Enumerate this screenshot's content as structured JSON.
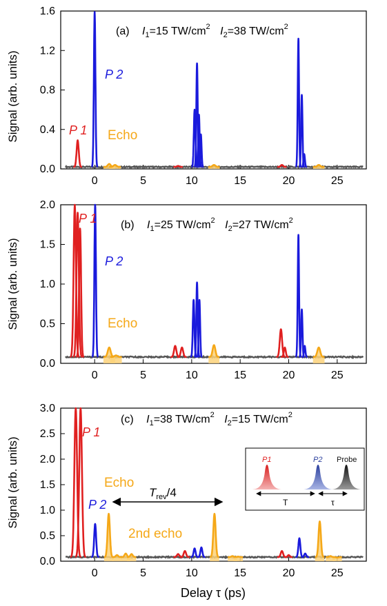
{
  "chart_data": [
    {
      "type": "line",
      "title": "(a)",
      "intensity_I1": "15 TW/cm",
      "intensity_I2": "38 TW/cm",
      "ylabel": "Signal (arb. units)",
      "xlabel": "",
      "xlim": [
        -3.5,
        28
      ],
      "ylim": [
        0,
        1.6
      ],
      "xticks": [
        "0",
        "5",
        "10",
        "15",
        "20",
        "25"
      ],
      "yticks": [
        "0.0",
        "0.4",
        "0.8",
        "1.2",
        "1.6"
      ],
      "ytick_values": [
        0,
        0.4,
        0.8,
        1.2,
        1.6
      ],
      "labels": {
        "p1": "P 1",
        "p2": "P 2",
        "echo": "Echo"
      },
      "baseline": 0.02,
      "series": [
        {
          "color": "#e02020",
          "peaks": [
            {
              "x": -1.75,
              "y": 0.29,
              "w": 0.11
            },
            {
              "x": 8.6,
              "y": 0.03,
              "w": 0.12
            },
            {
              "x": 19.3,
              "y": 0.04,
              "w": 0.12
            }
          ]
        },
        {
          "color": "#1a1adc",
          "peaks": [
            {
              "x": 0.0,
              "y": 1.59,
              "w": 0.08
            },
            {
              "x": 10.3,
              "y": 0.6,
              "w": 0.08
            },
            {
              "x": 10.55,
              "y": 1.07,
              "w": 0.07
            },
            {
              "x": 10.75,
              "y": 0.55,
              "w": 0.07
            },
            {
              "x": 10.95,
              "y": 0.35,
              "w": 0.07
            },
            {
              "x": 21.0,
              "y": 1.32,
              "w": 0.07
            },
            {
              "x": 21.35,
              "y": 0.75,
              "w": 0.07
            },
            {
              "x": 21.6,
              "y": 0.15,
              "w": 0.07
            }
          ]
        },
        {
          "color": "#f5a818",
          "peaks": [
            {
              "x": 1.5,
              "y": 0.05,
              "w": 0.15
            },
            {
              "x": 2.1,
              "y": 0.04,
              "w": 0.15
            },
            {
              "x": 12.3,
              "y": 0.04,
              "w": 0.15
            },
            {
              "x": 23.1,
              "y": 0.04,
              "w": 0.15
            }
          ]
        }
      ]
    },
    {
      "type": "line",
      "title": "(b)",
      "intensity_I1": "25 TW/cm",
      "intensity_I2": "27 TW/cm",
      "ylabel": "Signal (arb. units)",
      "xlabel": "",
      "xlim": [
        -3.5,
        28
      ],
      "ylim": [
        0,
        2.0
      ],
      "xticks": [
        "0",
        "5",
        "10",
        "15",
        "20",
        "25"
      ],
      "yticks": [
        "0.0",
        "0.5",
        "1.0",
        "1.5",
        "2.0"
      ],
      "ytick_values": [
        0,
        0.5,
        1.0,
        1.5,
        2.0
      ],
      "labels": {
        "p1": "P 1",
        "p2": "P 2",
        "echo": "Echo"
      },
      "baseline": 0.08,
      "series": [
        {
          "color": "#e02020",
          "peaks": [
            {
              "x": -2.05,
              "y": 2.0,
              "w": 0.12
            },
            {
              "x": -1.75,
              "y": 1.9,
              "w": 0.12
            },
            {
              "x": -1.5,
              "y": 1.7,
              "w": 0.1
            },
            {
              "x": 8.3,
              "y": 0.22,
              "w": 0.12
            },
            {
              "x": 9.0,
              "y": 0.2,
              "w": 0.12
            },
            {
              "x": 19.2,
              "y": 0.43,
              "w": 0.12
            },
            {
              "x": 19.6,
              "y": 0.2,
              "w": 0.1
            }
          ]
        },
        {
          "color": "#1a1adc",
          "peaks": [
            {
              "x": 0.05,
              "y": 2.0,
              "w": 0.08
            },
            {
              "x": 10.2,
              "y": 0.8,
              "w": 0.08
            },
            {
              "x": 10.55,
              "y": 1.02,
              "w": 0.07
            },
            {
              "x": 10.8,
              "y": 0.8,
              "w": 0.07
            },
            {
              "x": 21.0,
              "y": 1.62,
              "w": 0.07
            },
            {
              "x": 21.35,
              "y": 0.68,
              "w": 0.07
            },
            {
              "x": 21.65,
              "y": 0.22,
              "w": 0.07
            }
          ]
        },
        {
          "color": "#f5a818",
          "peaks": [
            {
              "x": 1.5,
              "y": 0.2,
              "w": 0.15
            },
            {
              "x": 2.2,
              "y": 0.1,
              "w": 0.15
            },
            {
              "x": 12.3,
              "y": 0.23,
              "w": 0.14
            },
            {
              "x": 23.1,
              "y": 0.2,
              "w": 0.15
            }
          ]
        }
      ]
    },
    {
      "type": "line",
      "title": "(c)",
      "intensity_I1": "38 TW/cm",
      "intensity_I2": "15 TW/cm",
      "ylabel": "Signal (arb. units)",
      "xlabel": "Delay τ (ps)",
      "xlim": [
        -3.5,
        28
      ],
      "ylim": [
        0,
        3.0
      ],
      "xticks": [
        "0",
        "5",
        "10",
        "15",
        "20",
        "25"
      ],
      "yticks": [
        "0.0",
        "0.5",
        "1.0",
        "1.5",
        "2.0",
        "2.5",
        "3.0"
      ],
      "ytick_values": [
        0,
        0.5,
        1.0,
        1.5,
        2.0,
        2.5,
        3.0
      ],
      "labels": {
        "p1": "P 1",
        "p2": "P 2",
        "echo": "Echo",
        "echo2": "2nd echo",
        "trev": "T",
        "trev_sub": "rev",
        "trev_frac": "/4"
      },
      "baseline": 0.08,
      "series": [
        {
          "color": "#e02020",
          "peaks": [
            {
              "x": -1.95,
              "y": 3.0,
              "w": 0.14
            },
            {
              "x": -1.45,
              "y": 3.0,
              "w": 0.14
            },
            {
              "x": 8.6,
              "y": 0.14,
              "w": 0.12
            },
            {
              "x": 9.3,
              "y": 0.2,
              "w": 0.12
            },
            {
              "x": 19.3,
              "y": 0.2,
              "w": 0.12
            },
            {
              "x": 20.0,
              "y": 0.12,
              "w": 0.1
            }
          ]
        },
        {
          "color": "#1a1adc",
          "peaks": [
            {
              "x": 0.05,
              "y": 0.73,
              "w": 0.1
            },
            {
              "x": 10.3,
              "y": 0.25,
              "w": 0.1
            },
            {
              "x": 11.0,
              "y": 0.27,
              "w": 0.1
            },
            {
              "x": 21.1,
              "y": 0.45,
              "w": 0.1
            },
            {
              "x": 21.7,
              "y": 0.15,
              "w": 0.1
            }
          ]
        },
        {
          "color": "#f5a818",
          "peaks": [
            {
              "x": 1.45,
              "y": 0.93,
              "w": 0.12
            },
            {
              "x": 2.3,
              "y": 0.12,
              "w": 0.12
            },
            {
              "x": 3.2,
              "y": 0.15,
              "w": 0.12
            },
            {
              "x": 3.8,
              "y": 0.14,
              "w": 0.12
            },
            {
              "x": 12.35,
              "y": 0.93,
              "w": 0.12
            },
            {
              "x": 14.2,
              "y": 0.1,
              "w": 0.12
            },
            {
              "x": 14.8,
              "y": 0.09,
              "w": 0.12
            },
            {
              "x": 23.2,
              "y": 0.78,
              "w": 0.12
            },
            {
              "x": 24.3,
              "y": 0.1,
              "w": 0.12
            },
            {
              "x": 25.0,
              "y": 0.07,
              "w": 0.12
            }
          ]
        }
      ],
      "inset": {
        "labels": {
          "p1": "P1",
          "p2": "P2",
          "probe": "Probe",
          "t": "T",
          "tau": "τ"
        },
        "colors": {
          "p1": "#e02020",
          "p2": "#2a3f9d",
          "probe": "#111111"
        }
      }
    }
  ]
}
